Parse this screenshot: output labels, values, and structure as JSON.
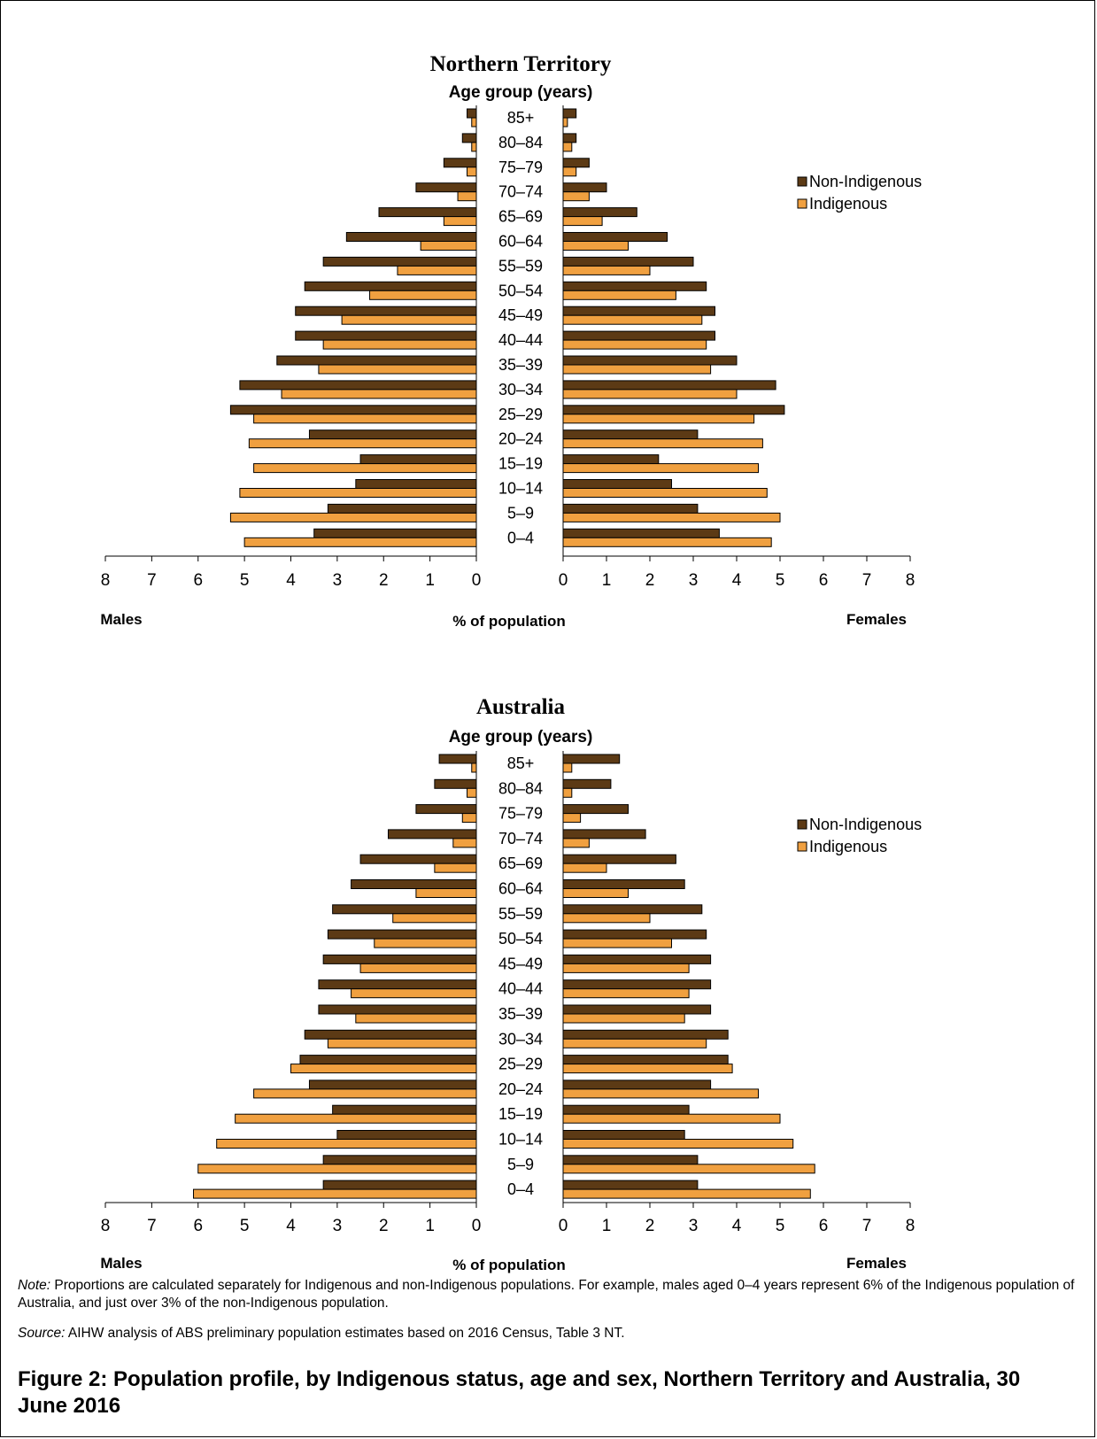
{
  "chart_data": [
    {
      "type": "bar",
      "title": "Northern Territory",
      "category_axis_title": "Age group (years)",
      "categories": [
        "85+",
        "80–84",
        "75–79",
        "70–74",
        "65–69",
        "60–64",
        "55–59",
        "50–54",
        "45–49",
        "40–44",
        "35–39",
        "30–34",
        "25–29",
        "20–24",
        "15–19",
        "10–14",
        "5–9",
        "0–4"
      ],
      "series": [
        {
          "name": "Non-Indigenous",
          "color": "#5c3a15",
          "males": [
            0.2,
            0.3,
            0.7,
            1.3,
            2.1,
            2.8,
            3.3,
            3.7,
            3.9,
            3.9,
            4.3,
            5.1,
            5.3,
            3.6,
            2.5,
            2.6,
            3.2,
            3.5
          ],
          "females": [
            0.3,
            0.3,
            0.6,
            1.0,
            1.7,
            2.4,
            3.0,
            3.3,
            3.5,
            3.5,
            4.0,
            4.9,
            5.1,
            3.1,
            2.2,
            2.5,
            3.1,
            3.6
          ]
        },
        {
          "name": "Indigenous",
          "color": "#f0a040",
          "males": [
            0.1,
            0.1,
            0.2,
            0.4,
            0.7,
            1.2,
            1.7,
            2.3,
            2.9,
            3.3,
            3.4,
            4.2,
            4.8,
            4.9,
            4.8,
            5.1,
            5.3,
            5.0
          ],
          "females": [
            0.1,
            0.2,
            0.3,
            0.6,
            0.9,
            1.5,
            2.0,
            2.6,
            3.2,
            3.3,
            3.4,
            4.0,
            4.4,
            4.6,
            4.5,
            4.7,
            5.0,
            4.8
          ]
        }
      ],
      "xlim": [
        0,
        8
      ],
      "ticks": [
        "8",
        "7",
        "6",
        "5",
        "4",
        "3",
        "2",
        "1",
        "0"
      ],
      "female_ticks": [
        "0",
        "1",
        "2",
        "3",
        "4",
        "5",
        "6",
        "7",
        "8"
      ],
      "xlabel": "% of population",
      "left_label": "Males",
      "right_label": "Females",
      "legend_position": "right"
    },
    {
      "type": "bar",
      "title": "Australia",
      "category_axis_title": "Age group (years)",
      "categories": [
        "85+",
        "80–84",
        "75–79",
        "70–74",
        "65–69",
        "60–64",
        "55–59",
        "50–54",
        "45–49",
        "40–44",
        "35–39",
        "30–34",
        "25–29",
        "20–24",
        "15–19",
        "10–14",
        "5–9",
        "0–4"
      ],
      "series": [
        {
          "name": "Non-Indigenous",
          "color": "#5c3a15",
          "males": [
            0.8,
            0.9,
            1.3,
            1.9,
            2.5,
            2.7,
            3.1,
            3.2,
            3.3,
            3.4,
            3.4,
            3.7,
            3.8,
            3.6,
            3.1,
            3.0,
            3.3,
            3.3
          ],
          "females": [
            1.3,
            1.1,
            1.5,
            1.9,
            2.6,
            2.8,
            3.2,
            3.3,
            3.4,
            3.4,
            3.4,
            3.8,
            3.8,
            3.4,
            2.9,
            2.8,
            3.1,
            3.1
          ]
        },
        {
          "name": "Indigenous",
          "color": "#f0a040",
          "males": [
            0.1,
            0.2,
            0.3,
            0.5,
            0.9,
            1.3,
            1.8,
            2.2,
            2.5,
            2.7,
            2.6,
            3.2,
            4.0,
            4.8,
            5.2,
            5.6,
            6.0,
            6.1
          ],
          "females": [
            0.2,
            0.2,
            0.4,
            0.6,
            1.0,
            1.5,
            2.0,
            2.5,
            2.9,
            2.9,
            2.8,
            3.3,
            3.9,
            4.5,
            5.0,
            5.3,
            5.8,
            5.7
          ]
        }
      ],
      "xlim": [
        0,
        8
      ],
      "ticks": [
        "8",
        "7",
        "6",
        "5",
        "4",
        "3",
        "2",
        "1",
        "0"
      ],
      "female_ticks": [
        "0",
        "1",
        "2",
        "3",
        "4",
        "5",
        "6",
        "7",
        "8"
      ],
      "xlabel": "% of population",
      "left_label": "Males",
      "right_label": "Females",
      "legend_position": "right"
    }
  ],
  "note": {
    "label": "Note:",
    "text": "Proportions are calculated separately for Indigenous and non-Indigenous populations. For example, males aged 0–4 years represent 6% of the Indigenous population of Australia, and just over 3% of the non-Indigenous population."
  },
  "source": {
    "label": "Source:",
    "text": "AIHW analysis of ABS preliminary population estimates based on 2016 Census, Table 3 NT."
  },
  "caption": "Figure 2: Population profile, by Indigenous status, age and sex, Northern Territory and Australia, 30 June 2016"
}
